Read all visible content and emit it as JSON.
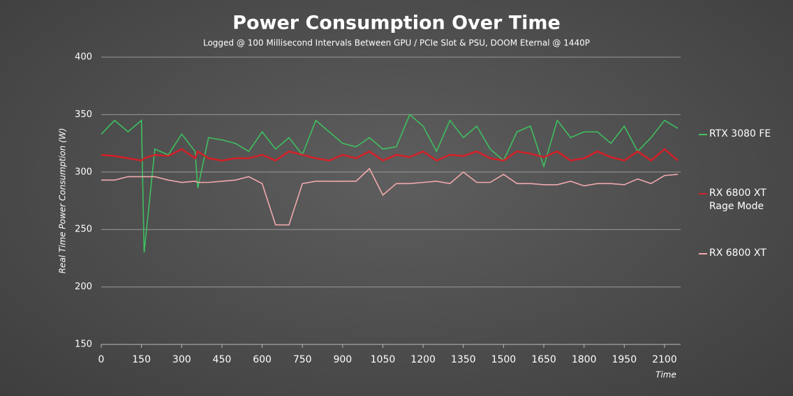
{
  "chart_data": {
    "type": "line",
    "title": "Power Consumption Over Time",
    "subtitle": "Logged @ 100 Millisecond Intervals Between GPU / PCIe Slot & PSU, DOOM Eternal @ 1440P",
    "x_label": "Time",
    "y_label": "Real Time Power Consumption (W)",
    "x": [
      0,
      50,
      100,
      150,
      160,
      200,
      250,
      300,
      350,
      360,
      400,
      450,
      500,
      550,
      600,
      650,
      700,
      750,
      800,
      850,
      900,
      950,
      1000,
      1050,
      1100,
      1150,
      1200,
      1250,
      1300,
      1350,
      1400,
      1450,
      1500,
      1550,
      1600,
      1650,
      1700,
      1750,
      1800,
      1850,
      1900,
      1950,
      2000,
      2050,
      2100,
      2150
    ],
    "series": [
      {
        "name": "RTX 3080 FE",
        "color": "#3fbf5f",
        "values": [
          333,
          345,
          335,
          345,
          230,
          320,
          315,
          333,
          318,
          286,
          330,
          328,
          325,
          318,
          335,
          320,
          330,
          315,
          345,
          335,
          325,
          322,
          330,
          320,
          322,
          350,
          340,
          318,
          345,
          330,
          340,
          320,
          310,
          335,
          340,
          305,
          345,
          330,
          335,
          335,
          325,
          340,
          318,
          330,
          345,
          338
        ]
      },
      {
        "name": "RX 6800 XT Rage Mode",
        "color": "#d42028",
        "values": [
          315,
          314,
          312,
          310,
          312,
          315,
          314,
          320,
          312,
          318,
          312,
          310,
          312,
          312,
          315,
          310,
          318,
          315,
          312,
          310,
          315,
          312,
          318,
          310,
          315,
          313,
          318,
          310,
          315,
          314,
          318,
          312,
          310,
          318,
          316,
          313,
          318,
          310,
          312,
          318,
          313,
          310,
          318,
          310,
          320,
          310
        ]
      },
      {
        "name": "RX 6800 XT",
        "color": "#f2a9ad",
        "values": [
          293,
          293,
          296,
          296,
          296,
          296,
          293,
          291,
          292,
          291,
          291,
          292,
          293,
          296,
          290,
          254,
          254,
          290,
          292,
          292,
          292,
          292,
          303,
          280,
          290,
          290,
          291,
          292,
          290,
          300,
          291,
          291,
          298,
          290,
          290,
          289,
          289,
          292,
          288,
          290,
          290,
          289,
          294,
          290,
          297,
          298
        ]
      }
    ],
    "xlim": [
      0,
      2160
    ],
    "xticks": [
      0,
      150,
      300,
      450,
      600,
      750,
      900,
      1050,
      1200,
      1350,
      1500,
      1650,
      1800,
      1950,
      2100
    ],
    "ylim": [
      150,
      400
    ],
    "yticks": [
      150,
      200,
      250,
      300,
      350,
      400
    ],
    "grid": true,
    "legend": "right"
  }
}
